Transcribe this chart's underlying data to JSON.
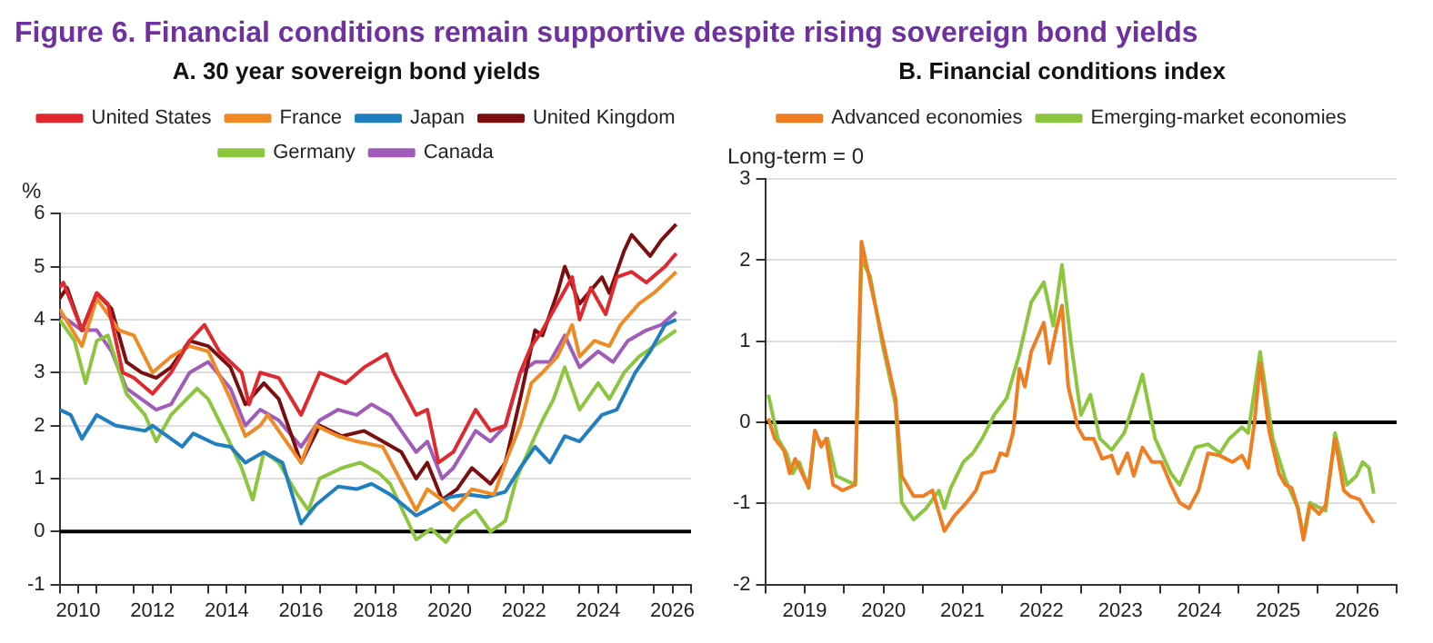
{
  "chart_data": [
    {
      "type": "line",
      "title": "Figure  6. Financial conditions remain supportive despite rising sovereign bond yields",
      "subtitle": "A. 30 year sovereign bond yields",
      "ylabel": "%",
      "xlim": [
        2010,
        2027
      ],
      "xticks": [
        {
          "value": 2010,
          "label": null
        },
        {
          "value": 2010.5,
          "label": "2010"
        },
        {
          "value": 2011,
          "label": null
        },
        {
          "value": 2012,
          "label": null
        },
        {
          "value": 2012.5,
          "label": "2012"
        },
        {
          "value": 2013,
          "label": null
        },
        {
          "value": 2014,
          "label": null
        },
        {
          "value": 2014.5,
          "label": "2014"
        },
        {
          "value": 2015,
          "label": null
        },
        {
          "value": 2016,
          "label": null
        },
        {
          "value": 2016.5,
          "label": "2016"
        },
        {
          "value": 2017,
          "label": null
        },
        {
          "value": 2018,
          "label": null
        },
        {
          "value": 2018.5,
          "label": "2018"
        },
        {
          "value": 2019,
          "label": null
        },
        {
          "value": 2020,
          "label": null
        },
        {
          "value": 2020.5,
          "label": "2020"
        },
        {
          "value": 2021,
          "label": null
        },
        {
          "value": 2022,
          "label": null
        },
        {
          "value": 2022.5,
          "label": "2022"
        },
        {
          "value": 2023,
          "label": null
        },
        {
          "value": 2024,
          "label": null
        },
        {
          "value": 2024.5,
          "label": "2024"
        },
        {
          "value": 2025,
          "label": null
        },
        {
          "value": 2026,
          "label": null
        },
        {
          "value": 2026.5,
          "label": "2026"
        },
        {
          "value": 2027,
          "label": null
        }
      ],
      "ylim": [
        -1,
        6
      ],
      "yticks": [
        -1,
        0,
        1,
        2,
        3,
        4,
        5,
        6
      ],
      "grid": "y",
      "legend": "top",
      "ref_lines": [
        {
          "axis": "y",
          "value": 0,
          "color": "#000000"
        }
      ],
      "series": [
        {
          "name": "United States",
          "color": "#e0282e",
          "x": [
            2010.0,
            2010.1,
            2010.6,
            2011.0,
            2011.3,
            2011.7,
            2012.0,
            2012.5,
            2013.0,
            2013.5,
            2013.9,
            2014.3,
            2014.9,
            2015.1,
            2015.4,
            2015.9,
            2016.5,
            2017.0,
            2017.7,
            2018.2,
            2018.8,
            2019.0,
            2019.6,
            2019.9,
            2020.2,
            2020.6,
            2021.2,
            2021.6,
            2022.0,
            2022.4,
            2022.7,
            2023.0,
            2023.8,
            2024.0,
            2024.3,
            2024.7,
            2025.0,
            2025.4,
            2025.8,
            2026.3,
            2026.6
          ],
          "values": [
            4.6,
            4.7,
            3.8,
            4.5,
            4.3,
            3.0,
            2.9,
            2.6,
            3.0,
            3.6,
            3.9,
            3.4,
            3.0,
            2.4,
            3.0,
            2.9,
            2.2,
            3.0,
            2.8,
            3.1,
            3.35,
            3.0,
            2.2,
            2.3,
            1.3,
            1.5,
            2.3,
            1.9,
            2.0,
            3.0,
            3.5,
            3.8,
            4.8,
            4.0,
            4.6,
            4.1,
            4.8,
            4.9,
            4.7,
            5.0,
            5.25
          ]
        },
        {
          "name": "France",
          "color": "#f08a24",
          "x": [
            2010.0,
            2010.6,
            2011.0,
            2011.6,
            2012.0,
            2012.5,
            2013.0,
            2013.5,
            2014.0,
            2014.6,
            2015.0,
            2015.4,
            2015.6,
            2016.5,
            2016.9,
            2017.5,
            2018.0,
            2018.7,
            2019.0,
            2019.6,
            2019.9,
            2020.3,
            2020.6,
            2021.1,
            2021.7,
            2022.0,
            2022.4,
            2022.7,
            2023.0,
            2023.4,
            2023.8,
            2024.0,
            2024.4,
            2024.8,
            2025.1,
            2025.6,
            2026.0,
            2026.6
          ],
          "values": [
            4.2,
            3.5,
            4.4,
            3.8,
            3.7,
            3.0,
            3.3,
            3.5,
            3.4,
            2.5,
            1.8,
            2.0,
            2.2,
            1.3,
            2.0,
            1.8,
            1.7,
            1.6,
            1.2,
            0.4,
            0.8,
            0.6,
            0.4,
            0.8,
            0.7,
            1.3,
            2.0,
            2.8,
            3.0,
            3.3,
            3.9,
            3.3,
            3.6,
            3.5,
            3.9,
            4.3,
            4.5,
            4.9
          ]
        },
        {
          "name": "Japan",
          "color": "#1f7fc0",
          "x": [
            2010.0,
            2010.3,
            2010.6,
            2011.0,
            2011.5,
            2012.3,
            2012.5,
            2013.3,
            2013.6,
            2014.2,
            2014.6,
            2015.0,
            2015.5,
            2016.0,
            2016.5,
            2016.9,
            2017.5,
            2018.0,
            2018.4,
            2018.9,
            2019.6,
            2020.0,
            2020.5,
            2021.0,
            2021.5,
            2022.0,
            2022.4,
            2022.8,
            2023.2,
            2023.6,
            2024.0,
            2024.6,
            2025.0,
            2025.5,
            2025.9,
            2026.3,
            2026.6
          ],
          "values": [
            2.3,
            2.2,
            1.75,
            2.2,
            2.0,
            1.9,
            2.0,
            1.6,
            1.85,
            1.65,
            1.6,
            1.3,
            1.5,
            1.3,
            0.15,
            0.5,
            0.85,
            0.8,
            0.9,
            0.7,
            0.3,
            0.45,
            0.65,
            0.7,
            0.65,
            0.75,
            1.2,
            1.6,
            1.3,
            1.8,
            1.7,
            2.2,
            2.3,
            3.0,
            3.4,
            3.9,
            4.0
          ]
        },
        {
          "name": "United Kingdom",
          "color": "#7b0f0f",
          "x": [
            2010.0,
            2010.2,
            2010.6,
            2011.0,
            2011.4,
            2011.8,
            2012.2,
            2012.6,
            2013.0,
            2013.5,
            2014.0,
            2014.6,
            2015.0,
            2015.5,
            2015.9,
            2016.5,
            2017.0,
            2017.6,
            2018.2,
            2018.7,
            2019.2,
            2019.6,
            2019.9,
            2020.3,
            2020.7,
            2021.1,
            2021.6,
            2022.0,
            2022.4,
            2022.8,
            2023.0,
            2023.4,
            2023.6,
            2024.0,
            2024.6,
            2024.8,
            2025.2,
            2025.4,
            2025.9,
            2026.2,
            2026.6
          ],
          "values": [
            4.4,
            4.6,
            3.8,
            4.5,
            4.2,
            3.2,
            3.0,
            2.9,
            3.1,
            3.6,
            3.5,
            3.1,
            2.4,
            2.8,
            2.5,
            1.3,
            2.0,
            1.8,
            1.9,
            1.7,
            1.5,
            1.0,
            1.3,
            0.6,
            0.8,
            1.2,
            0.9,
            1.3,
            2.5,
            3.8,
            3.7,
            4.5,
            5.0,
            4.3,
            4.8,
            4.5,
            5.3,
            5.6,
            5.2,
            5.5,
            5.8
          ]
        },
        {
          "name": "Germany",
          "color": "#8cc63e",
          "x": [
            2010.0,
            2010.4,
            2010.7,
            2011.0,
            2011.3,
            2011.8,
            2012.3,
            2012.6,
            2013.0,
            2013.7,
            2014.0,
            2014.5,
            2014.9,
            2015.2,
            2015.5,
            2015.9,
            2016.4,
            2016.7,
            2017.0,
            2017.6,
            2018.1,
            2018.6,
            2018.9,
            2019.3,
            2019.6,
            2020.0,
            2020.4,
            2020.8,
            2021.2,
            2021.6,
            2022.0,
            2022.3,
            2022.8,
            2023.0,
            2023.3,
            2023.6,
            2024.0,
            2024.5,
            2024.8,
            2025.2,
            2025.6,
            2026.0,
            2026.6
          ],
          "values": [
            4.0,
            3.6,
            2.8,
            3.6,
            3.7,
            2.6,
            2.2,
            1.7,
            2.2,
            2.7,
            2.5,
            1.8,
            1.2,
            0.6,
            1.5,
            1.3,
            0.7,
            0.4,
            1.0,
            1.2,
            1.3,
            1.1,
            0.9,
            0.3,
            -0.15,
            0.05,
            -0.2,
            0.2,
            0.4,
            0.0,
            0.2,
            1.0,
            1.8,
            2.1,
            2.5,
            3.1,
            2.3,
            2.8,
            2.5,
            3.0,
            3.3,
            3.5,
            3.8
          ]
        },
        {
          "name": "Canada",
          "color": "#a05cb8",
          "x": [
            2010.0,
            2010.6,
            2011.0,
            2011.4,
            2011.8,
            2012.2,
            2012.6,
            2013.0,
            2013.5,
            2014.0,
            2014.6,
            2015.0,
            2015.4,
            2015.9,
            2016.5,
            2017.0,
            2017.5,
            2018.0,
            2018.4,
            2018.9,
            2019.6,
            2019.9,
            2020.3,
            2020.6,
            2021.2,
            2021.6,
            2022.0,
            2022.4,
            2022.8,
            2023.2,
            2023.6,
            2024.0,
            2024.5,
            2024.9,
            2025.3,
            2025.8,
            2026.2,
            2026.6
          ],
          "values": [
            4.1,
            3.8,
            3.8,
            3.4,
            2.7,
            2.5,
            2.3,
            2.4,
            3.0,
            3.2,
            2.7,
            2.0,
            2.3,
            2.1,
            1.6,
            2.1,
            2.3,
            2.2,
            2.4,
            2.2,
            1.5,
            1.7,
            1.0,
            1.2,
            1.9,
            1.7,
            2.0,
            3.0,
            3.2,
            3.2,
            3.7,
            3.1,
            3.4,
            3.2,
            3.6,
            3.8,
            3.9,
            4.15
          ]
        }
      ]
    },
    {
      "type": "line",
      "title": "B. Financial conditions index",
      "ylabel": "Long-term = 0",
      "xlim": [
        2019,
        2027
      ],
      "xticks": [
        {
          "value": 2019,
          "label": null
        },
        {
          "value": 2019.5,
          "label": "2019"
        },
        {
          "value": 2020,
          "label": null
        },
        {
          "value": 2020.5,
          "label": "2020"
        },
        {
          "value": 2021,
          "label": null
        },
        {
          "value": 2021.5,
          "label": "2021"
        },
        {
          "value": 2022,
          "label": null
        },
        {
          "value": 2022.5,
          "label": "2022"
        },
        {
          "value": 2023,
          "label": null
        },
        {
          "value": 2023.5,
          "label": "2023"
        },
        {
          "value": 2024,
          "label": null
        },
        {
          "value": 2024.5,
          "label": "2024"
        },
        {
          "value": 2025,
          "label": null
        },
        {
          "value": 2025.5,
          "label": "2025"
        },
        {
          "value": 2026,
          "label": null
        },
        {
          "value": 2026.5,
          "label": "2026"
        },
        {
          "value": 2027,
          "label": null
        }
      ],
      "ylim": [
        -2,
        3
      ],
      "yticks": [
        -2,
        -1,
        0,
        1,
        2,
        3
      ],
      "grid": "y",
      "legend": "top",
      "ref_lines": [
        {
          "axis": "y",
          "value": 0,
          "color": "#000000"
        }
      ],
      "series": [
        {
          "name": "Advanced economies",
          "color": "#ef7d22",
          "x": [
            2019.04,
            2019.12,
            2019.24,
            2019.31,
            2019.38,
            2019.55,
            2019.63,
            2019.71,
            2019.77,
            2019.86,
            2019.98,
            2020.14,
            2020.22,
            2020.33,
            2020.49,
            2020.65,
            2020.73,
            2020.88,
            2021.0,
            2021.12,
            2021.27,
            2021.39,
            2021.55,
            2021.67,
            2021.75,
            2021.9,
            2021.98,
            2022.06,
            2022.14,
            2022.22,
            2022.29,
            2022.37,
            2022.53,
            2022.6,
            2022.69,
            2022.76,
            2022.84,
            2022.96,
            2023.04,
            2023.16,
            2023.27,
            2023.39,
            2023.47,
            2023.59,
            2023.67,
            2023.78,
            2023.9,
            2024.02,
            2024.14,
            2024.25,
            2024.37,
            2024.49,
            2024.61,
            2024.76,
            2024.92,
            2025.04,
            2025.12,
            2025.2,
            2025.27,
            2025.39,
            2025.51,
            2025.59,
            2025.67,
            2025.75,
            2025.82,
            2025.9,
            2026.02,
            2026.1,
            2026.22,
            2026.33,
            2026.41,
            2026.53,
            2026.61,
            2026.71
          ],
          "values": [
            0.05,
            -0.2,
            -0.35,
            -0.63,
            -0.45,
            -0.8,
            -0.1,
            -0.3,
            -0.2,
            -0.77,
            -0.84,
            -0.77,
            2.23,
            1.73,
            1.01,
            0.3,
            -0.66,
            -0.91,
            -0.91,
            -0.84,
            -1.34,
            -1.16,
            -0.99,
            -0.84,
            -0.63,
            -0.6,
            -0.38,
            -0.41,
            -0.13,
            0.66,
            0.44,
            0.87,
            1.23,
            0.73,
            1.16,
            1.44,
            0.44,
            -0.06,
            -0.2,
            -0.2,
            -0.45,
            -0.41,
            -0.63,
            -0.38,
            -0.66,
            -0.31,
            -0.49,
            -0.49,
            -0.77,
            -0.99,
            -1.06,
            -0.84,
            -0.38,
            -0.41,
            -0.49,
            -0.41,
            -0.56,
            0.01,
            0.73,
            -0.13,
            -0.63,
            -0.77,
            -0.81,
            -1.06,
            -1.45,
            -1.02,
            -1.13,
            -1.02,
            -0.2,
            -0.84,
            -0.91,
            -0.95,
            -1.09,
            -1.24
          ]
        },
        {
          "name": "Emerging-market economies",
          "color": "#8cc63e",
          "x": [
            2019.04,
            2019.16,
            2019.27,
            2019.35,
            2019.43,
            2019.55,
            2019.63,
            2019.71,
            2019.79,
            2019.9,
            2020.14,
            2020.22,
            2020.33,
            2020.49,
            2020.65,
            2020.73,
            2020.88,
            2021.04,
            2021.2,
            2021.27,
            2021.35,
            2021.51,
            2021.63,
            2021.75,
            2021.9,
            2022.06,
            2022.22,
            2022.37,
            2022.53,
            2022.65,
            2022.76,
            2022.88,
            2023.0,
            2023.12,
            2023.24,
            2023.39,
            2023.55,
            2023.78,
            2023.94,
            2024.14,
            2024.25,
            2024.45,
            2024.61,
            2024.76,
            2024.88,
            2025.04,
            2025.12,
            2025.27,
            2025.43,
            2025.59,
            2025.75,
            2025.82,
            2025.9,
            2026.1,
            2026.22,
            2026.37,
            2026.49,
            2026.57,
            2026.65,
            2026.71
          ],
          "values": [
            0.34,
            -0.2,
            -0.38,
            -0.63,
            -0.49,
            -0.81,
            -0.13,
            -0.27,
            -0.2,
            -0.66,
            -0.77,
            2.01,
            1.8,
            0.94,
            0.23,
            -0.99,
            -1.2,
            -1.06,
            -0.84,
            -1.06,
            -0.81,
            -0.49,
            -0.38,
            -0.2,
            0.09,
            0.3,
            0.84,
            1.48,
            1.73,
            1.19,
            1.94,
            0.94,
            0.09,
            0.34,
            -0.2,
            -0.34,
            -0.13,
            0.59,
            -0.2,
            -0.63,
            -0.77,
            -0.31,
            -0.27,
            -0.38,
            -0.2,
            -0.06,
            -0.13,
            0.87,
            -0.2,
            -0.7,
            -1.06,
            -1.41,
            -0.99,
            -1.09,
            -0.13,
            -0.77,
            -0.66,
            -0.49,
            -0.56,
            -0.88
          ]
        }
      ]
    }
  ]
}
